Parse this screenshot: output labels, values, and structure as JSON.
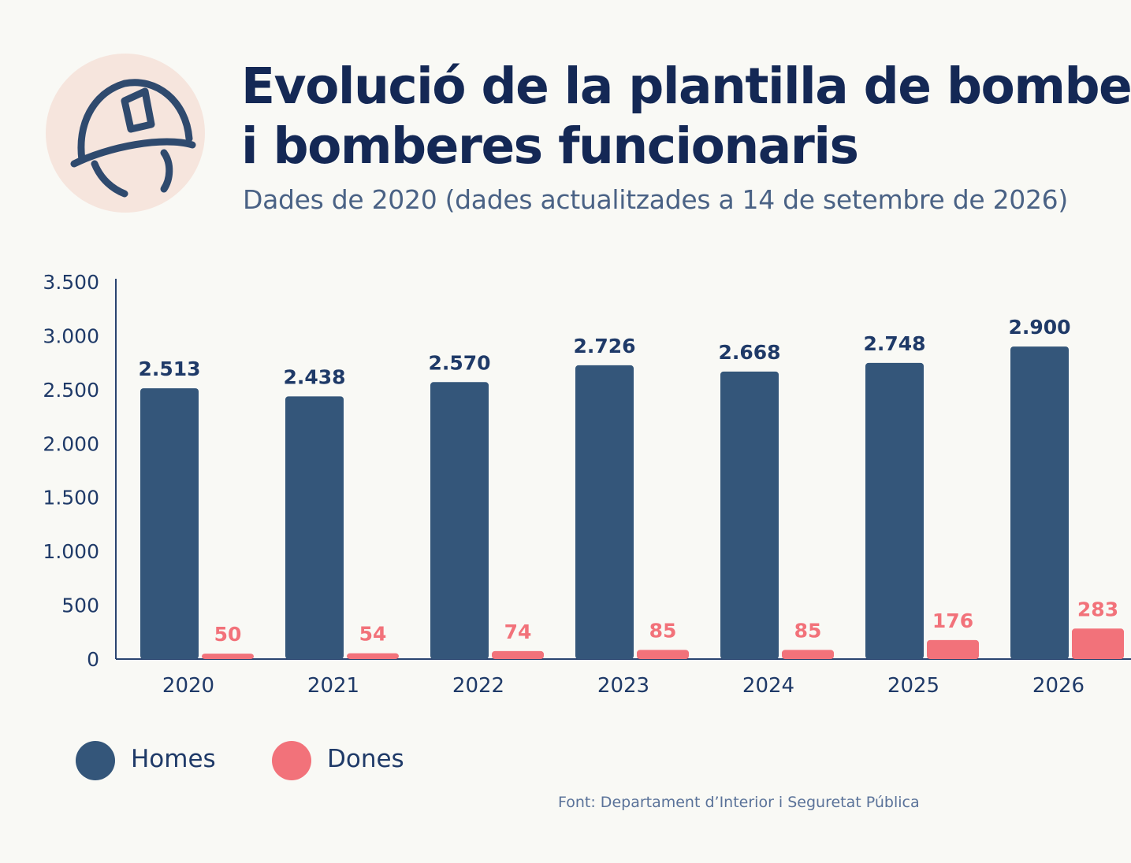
{
  "header": {
    "title_line1": "Evolució de la plantilla de bombers",
    "title_line2": "i bomberes funcionaris",
    "subtitle": "Dades de 2020 (dades actualitzades a 14 de setembre de 2026)",
    "icon": "firefighter-helmet-icon"
  },
  "colors": {
    "homes": "#34567a",
    "dones": "#f2727a",
    "axis": "#2a4470",
    "icon_circle": "#f6e5dd"
  },
  "chart_data": {
    "type": "bar",
    "categories": [
      "2020",
      "2021",
      "2022",
      "2023",
      "2024",
      "2025",
      "2026"
    ],
    "series": [
      {
        "name": "Homes",
        "values": [
          2513,
          2438,
          2570,
          2726,
          2668,
          2748,
          2900
        ],
        "labels": [
          "2.513",
          "2.438",
          "2.570",
          "2.726",
          "2.668",
          "2.748",
          "2.900"
        ]
      },
      {
        "name": "Dones",
        "values": [
          50,
          54,
          74,
          85,
          85,
          176,
          283
        ],
        "labels": [
          "50",
          "54",
          "74",
          "85",
          "85",
          "176",
          "283"
        ]
      }
    ],
    "ylim": [
      0,
      3500
    ],
    "yticks": [
      0,
      500,
      1000,
      1500,
      2000,
      2500,
      3000,
      3500
    ],
    "ytick_labels": [
      "0",
      "500",
      "1.000",
      "1.500",
      "2.000",
      "2.500",
      "3.000",
      "3.500"
    ],
    "grid": false,
    "legend_position": "bottom-left"
  },
  "legend": {
    "homes_label": "Homes",
    "dones_label": "Dones"
  },
  "source": "Font: Departament d’Interior i Seguretat Pública"
}
